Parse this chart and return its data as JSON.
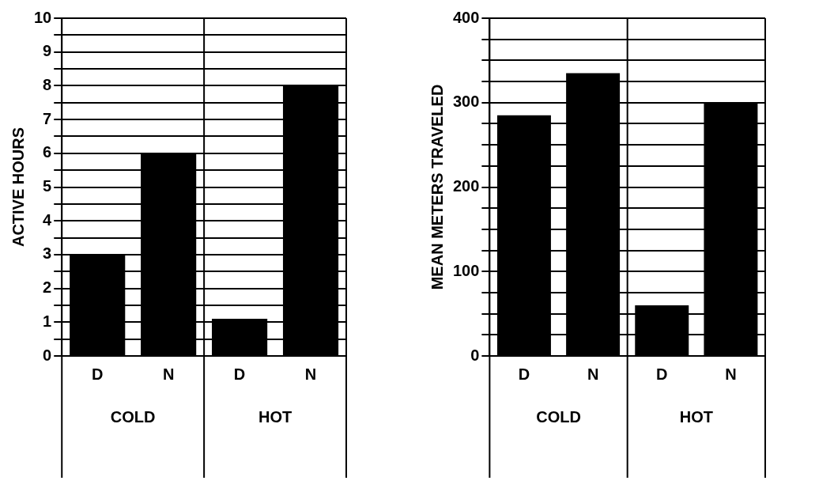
{
  "chart_data": [
    {
      "type": "bar",
      "ylabel": "ACTIVE HOURS",
      "categories": [
        "D",
        "N",
        "D",
        "N"
      ],
      "values": [
        3,
        6,
        1.1,
        8
      ],
      "color": "#000000",
      "ylim": [
        0,
        10
      ],
      "yticks": [
        0,
        {
          "value": 0.5,
          "label": null
        },
        1,
        {
          "value": 1.5,
          "label": null
        },
        2,
        {
          "value": 2.5,
          "label": null
        },
        3,
        {
          "value": 3.5,
          "label": null
        },
        4,
        {
          "value": 4.5,
          "label": null
        },
        5,
        {
          "value": 5.5,
          "label": null
        },
        6,
        {
          "value": 6.5,
          "label": null
        },
        7,
        {
          "value": 7.5,
          "label": null
        },
        8,
        {
          "value": 8.5,
          "label": null
        },
        9,
        {
          "value": 9.5,
          "label": null
        },
        10
      ],
      "grid": true,
      "annotations": [
        "COLD",
        "HOT"
      ]
    },
    {
      "type": "bar",
      "ylabel": "MEAN METERS TRAVELED",
      "categories": [
        "D",
        "N",
        "D",
        "N"
      ],
      "values": [
        285,
        335,
        60,
        300
      ],
      "color": "#000000",
      "ylim": [
        0,
        400
      ],
      "yticks": [
        0,
        {
          "value": 25,
          "label": null
        },
        {
          "value": 50,
          "label": null
        },
        {
          "value": 75,
          "label": null
        },
        100,
        {
          "value": 125,
          "label": null
        },
        {
          "value": 150,
          "label": null
        },
        {
          "value": 175,
          "label": null
        },
        200,
        {
          "value": 225,
          "label": null
        },
        {
          "value": 250,
          "label": null
        },
        {
          "value": 275,
          "label": null
        },
        300,
        {
          "value": 325,
          "label": null
        },
        {
          "value": 350,
          "label": null
        },
        {
          "value": 375,
          "label": null
        },
        400
      ],
      "grid": true,
      "annotations": [
        "COLD",
        "HOT"
      ]
    }
  ]
}
